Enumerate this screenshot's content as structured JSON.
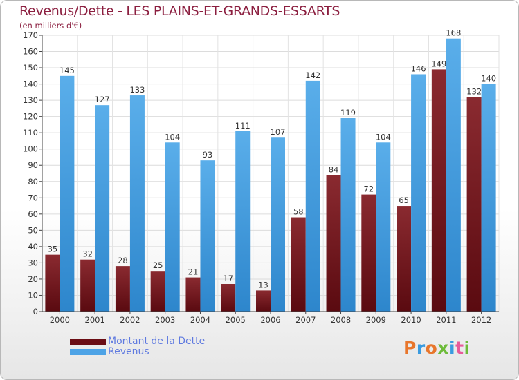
{
  "title": "Revenus/Dette - LES PLAINS-ET-GRANDS-ESSARTS",
  "subtitle": "(en milliers d'€)",
  "logo_text": "Proxiti",
  "colors": {
    "dette": "#7a1a22",
    "revenus": "#4da3e6",
    "title": "#8b1e3f",
    "legend_text": "#5f7ae0"
  },
  "chart_data": {
    "type": "bar",
    "title": "Revenus/Dette - LES PLAINS-ET-GRANDS-ESSARTS",
    "xlabel": "",
    "ylabel": "(en milliers d'€)",
    "ylim": [
      0,
      170
    ],
    "yticks": [
      0,
      10,
      20,
      30,
      40,
      50,
      60,
      70,
      80,
      90,
      100,
      110,
      120,
      130,
      140,
      150,
      160,
      170
    ],
    "grid": true,
    "legend_position": "bottom-left",
    "categories": [
      "2000",
      "2001",
      "2002",
      "2003",
      "2004",
      "2005",
      "2006",
      "2007",
      "2008",
      "2009",
      "2010",
      "2011",
      "2012"
    ],
    "series": [
      {
        "name": "Montant de la Dette",
        "values": [
          35,
          32,
          28,
          25,
          21,
          17,
          13,
          58,
          84,
          72,
          65,
          149,
          132
        ]
      },
      {
        "name": "Revenus",
        "values": [
          145,
          127,
          133,
          104,
          93,
          111,
          107,
          142,
          119,
          104,
          146,
          168,
          140
        ]
      }
    ]
  }
}
